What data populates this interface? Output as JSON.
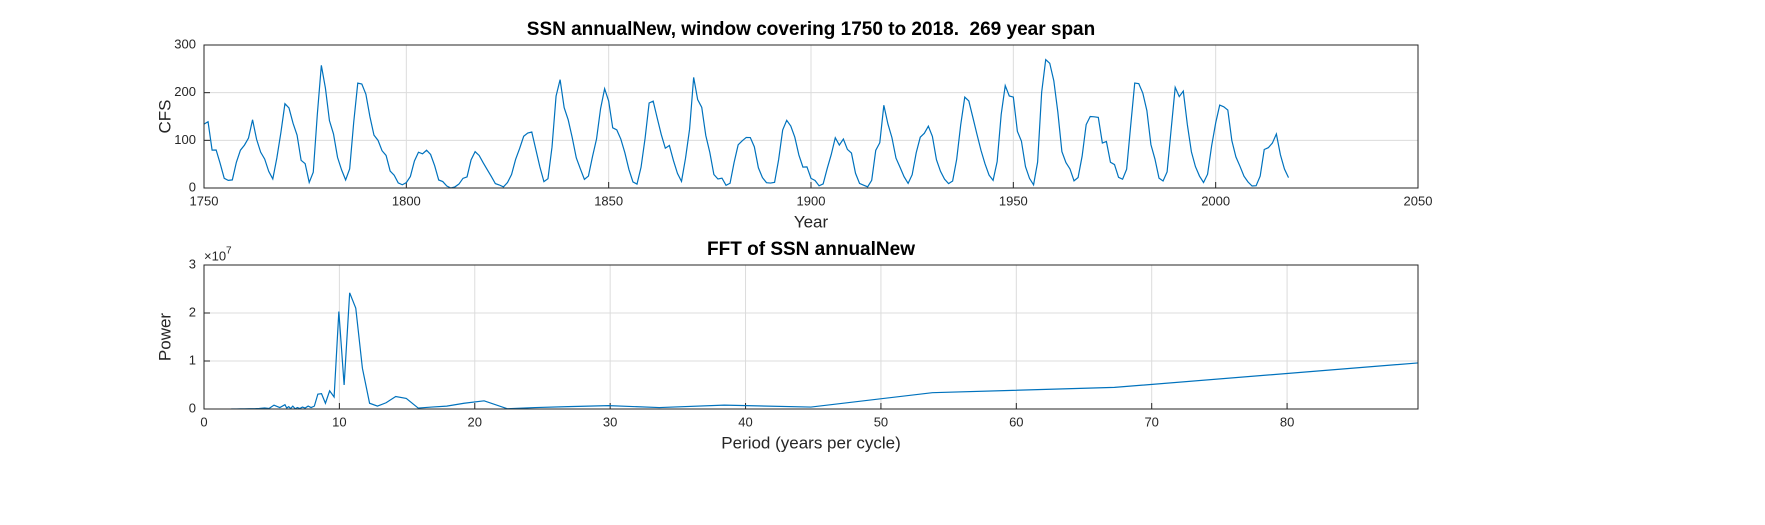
{
  "chart_data": [
    {
      "type": "line",
      "title": "SSN annualNew, window covering 1750 to 2018.  269 year span",
      "x_label": "Year",
      "y_label": "CFS",
      "xlim": [
        1750,
        2050
      ],
      "xticks": [
        1750,
        1800,
        1850,
        1900,
        1950,
        2000,
        2050
      ],
      "ylim": [
        0,
        300
      ],
      "yticks": [
        0,
        100,
        200,
        300
      ],
      "grid": true,
      "x": [
        1750,
        1751,
        1752,
        1753,
        1754,
        1755,
        1756,
        1757,
        1758,
        1759,
        1760,
        1761,
        1762,
        1763,
        1764,
        1765,
        1766,
        1767,
        1768,
        1769,
        1770,
        1771,
        1772,
        1773,
        1774,
        1775,
        1776,
        1777,
        1778,
        1779,
        1780,
        1781,
        1782,
        1783,
        1784,
        1785,
        1786,
        1787,
        1788,
        1789,
        1790,
        1791,
        1792,
        1793,
        1794,
        1795,
        1796,
        1797,
        1798,
        1799,
        1800,
        1801,
        1802,
        1803,
        1804,
        1805,
        1806,
        1807,
        1808,
        1809,
        1810,
        1811,
        1812,
        1813,
        1814,
        1815,
        1816,
        1817,
        1818,
        1819,
        1820,
        1821,
        1822,
        1823,
        1824,
        1825,
        1826,
        1827,
        1828,
        1829,
        1830,
        1831,
        1832,
        1833,
        1834,
        1835,
        1836,
        1837,
        1838,
        1839,
        1840,
        1841,
        1842,
        1843,
        1844,
        1845,
        1846,
        1847,
        1848,
        1849,
        1850,
        1851,
        1852,
        1853,
        1854,
        1855,
        1856,
        1857,
        1858,
        1859,
        1860,
        1861,
        1862,
        1863,
        1864,
        1865,
        1866,
        1867,
        1868,
        1869,
        1870,
        1871,
        1872,
        1873,
        1874,
        1875,
        1876,
        1877,
        1878,
        1879,
        1880,
        1881,
        1882,
        1883,
        1884,
        1885,
        1886,
        1887,
        1888,
        1889,
        1890,
        1891,
        1892,
        1893,
        1894,
        1895,
        1896,
        1897,
        1898,
        1899,
        1900,
        1901,
        1902,
        1903,
        1904,
        1905,
        1906,
        1907,
        1908,
        1909,
        1910,
        1911,
        1912,
        1913,
        1914,
        1915,
        1916,
        1917,
        1918,
        1919,
        1920,
        1921,
        1922,
        1923,
        1924,
        1925,
        1926,
        1927,
        1928,
        1929,
        1930,
        1931,
        1932,
        1933,
        1934,
        1935,
        1936,
        1937,
        1938,
        1939,
        1940,
        1941,
        1942,
        1943,
        1944,
        1945,
        1946,
        1947,
        1948,
        1949,
        1950,
        1951,
        1952,
        1953,
        1954,
        1955,
        1956,
        1957,
        1958,
        1959,
        1960,
        1961,
        1962,
        1963,
        1964,
        1965,
        1966,
        1967,
        1968,
        1969,
        1970,
        1971,
        1972,
        1973,
        1974,
        1975,
        1976,
        1977,
        1978,
        1979,
        1980,
        1981,
        1982,
        1983,
        1984,
        1985,
        1986,
        1987,
        1988,
        1989,
        1990,
        1991,
        1992,
        1993,
        1994,
        1995,
        1996,
        1997,
        1998,
        1999,
        2000,
        2001,
        2002,
        2003,
        2004,
        2005,
        2006,
        2007,
        2008,
        2009,
        2010,
        2011,
        2012,
        2013,
        2014,
        2015,
        2016,
        2017,
        2018
      ],
      "series": [
        {
          "color": "#0072bd",
          "values": [
            134.0,
            139.0,
            79.5,
            79.7,
            51.2,
            20.3,
            16.0,
            17.0,
            54.0,
            79.3,
            90.0,
            104.8,
            143.2,
            102.0,
            75.2,
            60.7,
            34.8,
            19.0,
            63.0,
            116.3,
            176.8,
            168.0,
            136.0,
            110.8,
            58.0,
            51.0,
            11.7,
            33.0,
            154.2,
            257.3,
            209.8,
            141.3,
            113.5,
            64.2,
            38.0,
            17.0,
            40.2,
            138.2,
            220.0,
            218.2,
            196.8,
            149.8,
            111.0,
            100.0,
            78.2,
            68.3,
            35.5,
            26.7,
            10.7,
            6.8,
            11.3,
            24.2,
            56.7,
            75.0,
            71.8,
            79.2,
            70.3,
            46.8,
            16.8,
            13.5,
            4.2,
            0.0,
            2.3,
            8.3,
            20.3,
            23.2,
            59.0,
            76.3,
            68.3,
            52.9,
            38.5,
            24.2,
            9.2,
            6.3,
            2.2,
            11.4,
            28.2,
            59.9,
            83.0,
            108.5,
            115.2,
            117.4,
            80.8,
            44.3,
            13.4,
            19.5,
            85.8,
            192.7,
            227.3,
            168.7,
            143.0,
            105.5,
            63.3,
            40.3,
            18.1,
            25.1,
            65.8,
            102.7,
            166.3,
            208.3,
            182.5,
            126.3,
            122.0,
            102.7,
            74.1,
            39.0,
            12.7,
            8.2,
            43.4,
            104.4,
            178.3,
            182.2,
            146.6,
            112.1,
            83.5,
            89.2,
            57.8,
            30.7,
            13.9,
            62.8,
            123.6,
            232.0,
            185.3,
            169.2,
            110.1,
            74.5,
            28.3,
            18.9,
            20.7,
            5.7,
            10.0,
            53.7,
            90.5,
            99.0,
            106.1,
            105.8,
            86.3,
            42.4,
            21.8,
            11.2,
            10.4,
            11.8,
            59.5,
            121.7,
            142.0,
            130.0,
            106.6,
            69.4,
            43.8,
            44.4,
            20.2,
            15.7,
            4.6,
            8.5,
            40.8,
            70.1,
            105.5,
            90.1,
            102.8,
            80.9,
            73.2,
            30.9,
            9.5,
            6.0,
            2.4,
            16.1,
            79.0,
            95.0,
            173.6,
            134.6,
            105.7,
            62.7,
            43.5,
            23.7,
            9.7,
            27.9,
            74.0,
            106.5,
            114.7,
            129.7,
            108.2,
            59.4,
            35.1,
            18.6,
            9.2,
            14.6,
            60.2,
            132.8,
            190.6,
            182.6,
            148.0,
            113.0,
            79.2,
            50.8,
            27.1,
            16.1,
            55.3,
            154.3,
            214.7,
            193.0,
            190.7,
            118.9,
            98.3,
            45.0,
            20.1,
            6.6,
            54.2,
            200.7,
            269.3,
            261.7,
            225.1,
            159.0,
            76.4,
            53.4,
            39.9,
            15.0,
            22.0,
            66.8,
            132.9,
            150.0,
            149.4,
            148.0,
            94.4,
            97.6,
            54.1,
            49.2,
            22.5,
            18.4,
            39.3,
            131.0,
            220.1,
            218.9,
            198.9,
            162.4,
            91.0,
            60.5,
            20.6,
            14.8,
            33.9,
            123.0,
            211.1,
            191.8,
            203.3,
            133.0,
            76.1,
            44.9,
            25.1,
            11.6,
            28.9,
            88.3,
            136.3,
            173.9,
            170.4,
            163.6,
            99.3,
            65.3,
            45.8,
            24.7,
            12.6,
            4.2,
            4.8,
            24.9,
            80.8,
            84.5,
            94.0,
            113.3,
            69.8,
            39.8,
            21.7
          ]
        }
      ]
    },
    {
      "type": "line",
      "title": "FFT of SSN annualNew",
      "x_label": "Period (years per cycle)",
      "y_label": "Power",
      "y_exponent_base": "×10",
      "y_exponent": "7",
      "xlim": [
        0,
        89.67
      ],
      "xticks": [
        0,
        10,
        20,
        30,
        40,
        50,
        60,
        70,
        80
      ],
      "ylim": [
        0,
        30000000
      ],
      "yticks": [
        0,
        {
          "value": 10000000,
          "label": "1"
        },
        {
          "value": 20000000,
          "label": "2"
        },
        {
          "value": 30000000,
          "label": "3"
        }
      ],
      "grid": true,
      "x": [
        89.67,
        67.25,
        53.8,
        44.83,
        38.43,
        33.63,
        29.89,
        26.9,
        24.45,
        22.42,
        20.69,
        19.21,
        17.93,
        16.81,
        15.82,
        14.94,
        14.16,
        13.45,
        12.81,
        12.23,
        11.7,
        11.21,
        10.76,
        10.35,
        9.96,
        9.61,
        9.28,
        8.97,
        8.68,
        8.41,
        8.15,
        7.91,
        7.69,
        7.47,
        7.27,
        7.08,
        6.9,
        6.73,
        6.56,
        6.4,
        6.26,
        6.11,
        5.98,
        5.6,
        5.17,
        4.8,
        4.48,
        4.08,
        3.74,
        3.36,
        2.99,
        2.69,
        2.4,
        2.17,
        2.01
      ],
      "series": [
        {
          "color": "#0072bd",
          "values": [
            9600000,
            4500000,
            3400000,
            400000,
            800000,
            300000,
            700000,
            500000,
            300000,
            50000,
            1700000,
            1200000,
            600000,
            400000,
            200000,
            2200000,
            2600000,
            1300000,
            600000,
            1200000,
            8500000,
            21000000,
            24200000,
            5000000,
            20300000,
            2500000,
            3800000,
            1200000,
            3200000,
            3100000,
            600000,
            300000,
            600000,
            200000,
            400000,
            100000,
            300000,
            50000,
            600000,
            100000,
            500000,
            200000,
            900000,
            300000,
            800000,
            100000,
            200000,
            100000,
            50000,
            50000,
            20000,
            20000,
            10000,
            10000,
            10000
          ]
        }
      ]
    }
  ]
}
